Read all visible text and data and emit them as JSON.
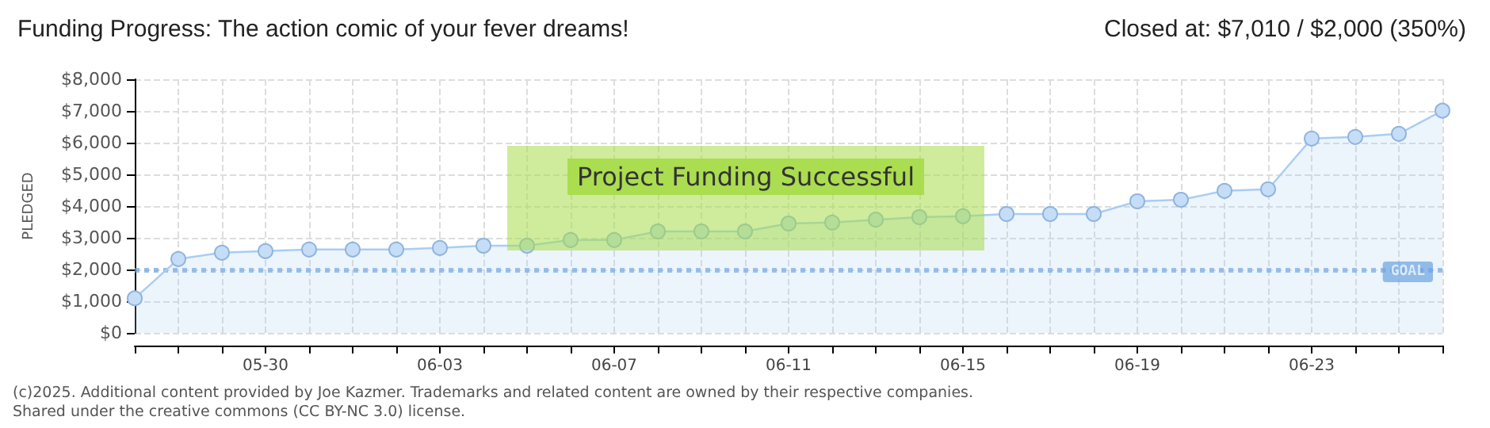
{
  "chart_data": {
    "type": "area",
    "title": "Funding Progress: The action comic of your fever dreams!",
    "subtitle": "Closed at: $7,010 / $2,000 (350%)",
    "ylabel": "PLEDGED",
    "categories": [
      null,
      null,
      null,
      "05-30",
      null,
      null,
      null,
      "06-03",
      null,
      null,
      null,
      "06-07",
      null,
      null,
      null,
      "06-11",
      null,
      null,
      null,
      "06-15",
      null,
      null,
      null,
      "06-19",
      null,
      null,
      null,
      "06-23",
      null,
      null,
      null
    ],
    "series": [
      {
        "color": "#a9cdf3",
        "values": [
          1090,
          2330,
          2530,
          2580,
          2630,
          2630,
          2630,
          2680,
          2750,
          2750,
          2930,
          2930,
          3200,
          3200,
          3200,
          3450,
          3480,
          3570,
          3650,
          3680,
          3750,
          3750,
          3750,
          4150,
          4200,
          4480,
          4530,
          6130,
          6180,
          6280,
          7010
        ]
      }
    ],
    "ylim": [
      0,
      8000
    ],
    "yticks": [
      {
        "value": 0,
        "label": "$0"
      },
      {
        "value": 1000,
        "label": "$1,000"
      },
      {
        "value": 2000,
        "label": "$2,000"
      },
      {
        "value": 3000,
        "label": "$3,000"
      },
      {
        "value": 4000,
        "label": "$4,000"
      },
      {
        "value": 5000,
        "label": "$5,000"
      },
      {
        "value": 6000,
        "label": "$6,000"
      },
      {
        "value": 7000,
        "label": "$7,000"
      },
      {
        "value": 8000,
        "label": "$8,000"
      }
    ],
    "grid": true,
    "marker": "circle",
    "ref_lines": [
      {
        "axis": "y",
        "value": 2000,
        "label": "GOAL",
        "color": "#6ba3e0",
        "line_style": "dotted"
      }
    ],
    "annotations": [
      "Project Funding Successful",
      "(c)2025. Additional content provided by Joe Kazmer. Trademarks and related content are owned by their respective companies.",
      "Shared under the creative commons (CC BY-NC 3.0) license."
    ]
  }
}
